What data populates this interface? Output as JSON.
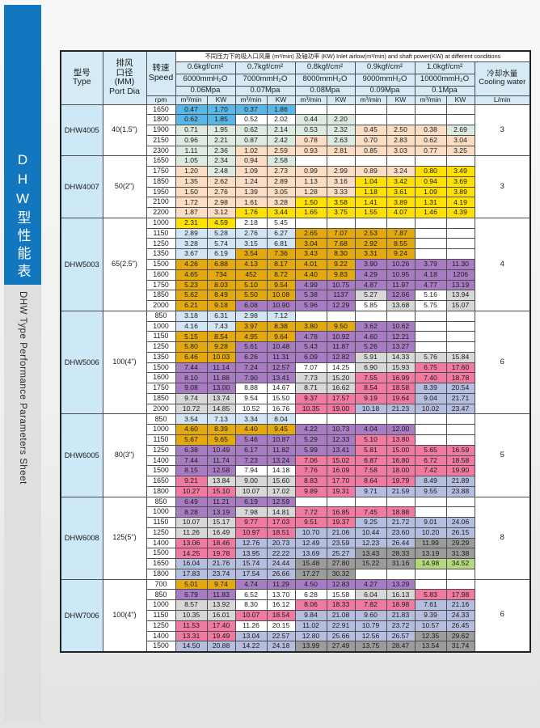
{
  "sidebar": {
    "title_cn": "DHW型性能表",
    "title_en": "DHW Type Performance Parameters Sheet"
  },
  "colors": {
    "sidebar_blue": "#1377C0",
    "sidebar_gray": "#DFDFDF",
    "header_blue": "#D6EAF5",
    "model_blue": "#CDE8F7"
  },
  "palette": {
    "B": "#58B7E6",
    "G": "#DCEADF",
    "P": "#FADDC3",
    "Y": "#FFE105",
    "L": "#D3E5F5",
    "O": "#E3A90F",
    "U": "#A87CC2",
    "S": "#D8D8D8",
    "K": "#F07AA2",
    "W": "#B5BEDF",
    "D": "#9C9C9C",
    "N": "#B5D77D",
    "-": "#FFFFFF"
  },
  "table": {
    "header": {
      "col_type": "型号\nType",
      "col_port": "排风\n口径\n(MM)\nPort Dia",
      "col_speed": "转速\nSpeed",
      "col_rpm": "rpm",
      "title": "不同压力下的吸入口风量 (m³/min) 及轴功率 (KW) Inlet airlow(m³/min) and shaft power(KW) at different conditions",
      "pressures": [
        "0.6kgf/cm²",
        "0.7kgf/cm²",
        "0.8kgf/cm²",
        "0.9kgf/cm²",
        "1.0kgf/cm²"
      ],
      "mmh2o": [
        "6000mmH₂O",
        "7000mmH₂O",
        "8000mmH₂O",
        "9000mmH₂O",
        "10000mmH₂O"
      ],
      "mpa": [
        "0.06Mpa",
        "0.07Mpa",
        "0.08Mpa",
        "0.09Mpa",
        "0.1Mpa"
      ],
      "unit_flow": "m³/min",
      "unit_power": "KW",
      "cooling": "冷却水量\nCooling water",
      "cooling_unit": "L/min"
    },
    "blocks": [
      {
        "model": "DHW4005",
        "port": "40(1.5\")",
        "cooling": "3",
        "rows": [
          {
            "rpm": "1650",
            "v": [
              "0.47",
              "1.70",
              "0.37",
              "1.86",
              "",
              "",
              "",
              "",
              "",
              ""
            ],
            "c": "BBBB------"
          },
          {
            "rpm": "1800",
            "v": [
              "0.62",
              "1.85",
              "0.52",
              "2.02",
              "0.44",
              "2.20",
              "",
              "",
              "",
              ""
            ],
            "c": "BB--GG----"
          },
          {
            "rpm": "1900",
            "v": [
              "0.71",
              "1.95",
              "0.62",
              "2.14",
              "0.53",
              "2.32",
              "0.45",
              "2.50",
              "0.38",
              "2.69"
            ],
            "c": "GGGGGGPPPG"
          },
          {
            "rpm": "2150",
            "v": [
              "0.96",
              "2.21",
              "0.87",
              "2.42",
              "0.78",
              "2.63",
              "0.70",
              "2.83",
              "0.62",
              "3.04"
            ],
            "c": "GGGGPGPPPP"
          },
          {
            "rpm": "2300",
            "v": [
              "1.11",
              "2.36",
              "1.02",
              "2.59",
              "0.93",
              "2.81",
              "0.85",
              "3.03",
              "0.77",
              "3.25"
            ],
            "c": "GGPPPPPPPP"
          }
        ]
      },
      {
        "model": "DHW4007",
        "port": "50(2\")",
        "cooling": "3",
        "rows": [
          {
            "rpm": "1650",
            "v": [
              "1.05",
              "2.34",
              "0.94",
              "2.58",
              "",
              "",
              "",
              "",
              "",
              ""
            ],
            "c": "GGPG------"
          },
          {
            "rpm": "1750",
            "v": [
              "1.20",
              "2.48",
              "1.09",
              "2.73",
              "0.99",
              "2.99",
              "0.89",
              "3.24",
              "0.80",
              "3.49"
            ],
            "c": "PGPPPPPPYY"
          },
          {
            "rpm": "1850",
            "v": [
              "1.35",
              "2.62",
              "1.24",
              "2.89",
              "1.13",
              "3.16",
              "1.04",
              "3.42",
              "0.94",
              "3.69"
            ],
            "c": "PPPPPPYYYY"
          },
          {
            "rpm": "1950",
            "v": [
              "1.50",
              "2.76",
              "1.39",
              "3.05",
              "1.28",
              "3.33",
              "1.18",
              "3.61",
              "1.09",
              "3.89"
            ],
            "c": "PPPPPPYYYY"
          },
          {
            "rpm": "2100",
            "v": [
              "1.72",
              "2.98",
              "1.61",
              "3.28",
              "1.50",
              "3.58",
              "1.41",
              "3.89",
              "1.31",
              "4.19"
            ],
            "c": "PPPPYYYYYY"
          },
          {
            "rpm": "2200",
            "v": [
              "1.87",
              "3.12",
              "1.76",
              "3.44",
              "1.65",
              "3.75",
              "1.55",
              "4.07",
              "1.46",
              "4.39"
            ],
            "c": "PPYYYYYYYY"
          }
        ]
      },
      {
        "model": "DHW5003",
        "port": "65(2.5\")",
        "cooling": "4",
        "rows": [
          {
            "rpm": "1000",
            "v": [
              "2.31",
              "4.59",
              "2.18",
              "5.45",
              "",
              "",
              "",
              "",
              "",
              ""
            ],
            "c": "YY--------"
          },
          {
            "rpm": "1150",
            "v": [
              "2.89",
              "5.28",
              "2.76",
              "6.27",
              "2.65",
              "7.07",
              "2.53",
              "7.87",
              "",
              ""
            ],
            "c": "LLLLOOOO--"
          },
          {
            "rpm": "1250",
            "v": [
              "3.28",
              "5.74",
              "3.15",
              "6.81",
              "3.04",
              "7.68",
              "2.92",
              "8.55",
              "",
              ""
            ],
            "c": "LLLLOOOO--"
          },
          {
            "rpm": "1350",
            "v": [
              "3.67",
              "6.19",
              "3.54",
              "7.36",
              "3.43",
              "8.30",
              "3.31",
              "9.24",
              "",
              ""
            ],
            "c": "LLOOOOOO--"
          },
          {
            "rpm": "1500",
            "v": [
              "4.26",
              "6.88",
              "4.13",
              "8.17",
              "4.01",
              "9.22",
              "3.90",
              "10.26",
              "3.79",
              "11.30"
            ],
            "c": "OOOOOOUUUU"
          },
          {
            "rpm": "1600",
            "v": [
              "4.65",
              "734",
              "452",
              "8.72",
              "4.40",
              "9.83",
              "4.29",
              "10.95",
              "4.18",
              "1206"
            ],
            "c": "OOOOOOUUUU"
          },
          {
            "rpm": "1750",
            "v": [
              "5.23",
              "8.03",
              "5.10",
              "9.54",
              "4.99",
              "10.75",
              "4.87",
              "11.97",
              "4.77",
              "13.19"
            ],
            "c": "OOOOUUUUUU"
          },
          {
            "rpm": "1850",
            "v": [
              "5.62",
              "8.49",
              "5.50",
              "10.08",
              "5.38",
              "1137",
              "5.27",
              "12.66",
              "5.16",
              "13.94"
            ],
            "c": "OOOOUUSU-S"
          },
          {
            "rpm": "2000",
            "v": [
              "6.21",
              "9.18",
              "6.08",
              "10.90",
              "5.96",
              "12.29",
              "5.85",
              "13.68",
              "5.75",
              "15.07"
            ],
            "c": "OOUUUU-S-S"
          }
        ]
      },
      {
        "model": "DHW5006",
        "port": "100(4\")",
        "cooling": "6",
        "rows": [
          {
            "rpm": "850",
            "v": [
              "3.18",
              "6.31",
              "2.98",
              "7.12",
              "",
              "",
              "",
              "",
              "",
              ""
            ],
            "c": "LLLL------"
          },
          {
            "rpm": "1000",
            "v": [
              "4.16",
              "7.43",
              "3.97",
              "8.38",
              "3.80",
              "9.50",
              "3.62",
              "10.62",
              "",
              ""
            ],
            "c": "LLOOOOUU--"
          },
          {
            "rpm": "1150",
            "v": [
              "5.15",
              "8.54",
              "4.95",
              "9.64",
              "4.78",
              "10.92",
              "4.60",
              "12.21",
              "",
              ""
            ],
            "c": "OOOOUUUU--"
          },
          {
            "rpm": "1250",
            "v": [
              "5.80",
              "9.28",
              "5.61",
              "10.48",
              "5.43",
              "11.87",
              "5.26",
              "13.27",
              "",
              ""
            ],
            "c": "OOUUUUUU--"
          },
          {
            "rpm": "1350",
            "v": [
              "6.46",
              "10.03",
              "6.26",
              "11.31",
              "6.09",
              "12.82",
              "5.91",
              "14.33",
              "5.76",
              "15.84"
            ],
            "c": "OOUUUUSSSS"
          },
          {
            "rpm": "1500",
            "v": [
              "7.44",
              "11.14",
              "7.24",
              "12.57",
              "7.07",
              "14.25",
              "6.90",
              "15.93",
              "6.75",
              "17.60"
            ],
            "c": "UUUU--SSKK"
          },
          {
            "rpm": "1600",
            "v": [
              "8.10",
              "11.88",
              "7.90",
              "13.41",
              "7.73",
              "15.20",
              "7.55",
              "16.99",
              "7.40",
              "18.78"
            ],
            "c": "UUUUSSKKKK"
          },
          {
            "rpm": "1750",
            "v": [
              "9.08",
              "13.00",
              "8.88",
              "14.67",
              "8.71",
              "16.62",
              "8.54",
              "18.58",
              "8.39",
              "20.54"
            ],
            "c": "UU--SSKKWW"
          },
          {
            "rpm": "1850",
            "v": [
              "9.74",
              "13.74",
              "9.54",
              "15.50",
              "9.37",
              "17.57",
              "9.19",
              "19.64",
              "9.04",
              "21.71"
            ],
            "c": "SS--KKKKWW"
          },
          {
            "rpm": "2000",
            "v": [
              "10.72",
              "14.85",
              "10.52",
              "16.76",
              "10.35",
              "19.00",
              "10.18",
              "21.23",
              "10.02",
              "23.47"
            ],
            "c": "SS--KKWWWW"
          }
        ]
      },
      {
        "model": "DHW6005",
        "port": "80(3\")",
        "cooling": "5",
        "rows": [
          {
            "rpm": "850",
            "v": [
              "3.54",
              "7.13",
              "3.34",
              "8.04",
              "",
              "",
              "",
              "",
              "",
              ""
            ],
            "c": "LLLL------"
          },
          {
            "rpm": "1000",
            "v": [
              "4.60",
              "8.39",
              "4.40",
              "9.45",
              "4.22",
              "10.73",
              "4.04",
              "12.00",
              "",
              ""
            ],
            "c": "OOOOUUUU--"
          },
          {
            "rpm": "1150",
            "v": [
              "5.67",
              "9.65",
              "5.46",
              "10.87",
              "5.29",
              "12.33",
              "5.10",
              "13.80",
              "",
              ""
            ],
            "c": "OOUUUUKK--"
          },
          {
            "rpm": "1250",
            "v": [
              "6.38",
              "10.49",
              "6.17",
              "11.82",
              "5.99",
              "13.41",
              "5.81",
              "15.00",
              "5.65",
              "16.59"
            ],
            "c": "UUUUUUKKKK"
          },
          {
            "rpm": "1400",
            "v": [
              "7.44",
              "11.74",
              "7.23",
              "13.24",
              "7.06",
              "15.02",
              "6.87",
              "16.80",
              "6.72",
              "18.58"
            ],
            "c": "UUUUKKKKKK"
          },
          {
            "rpm": "1500",
            "v": [
              "8.15",
              "12.58",
              "7.94",
              "14.18",
              "7.76",
              "16.09",
              "7.58",
              "18.00",
              "7.42",
              "19.90"
            ],
            "c": "UU--KKKKKK"
          },
          {
            "rpm": "1650",
            "v": [
              "9.21",
              "13.84",
              "9.00",
              "15.60",
              "8.83",
              "17.70",
              "8.64",
              "19.79",
              "8.49",
              "21.89"
            ],
            "c": "KSSSKKKKWW"
          },
          {
            "rpm": "1800",
            "v": [
              "10.27",
              "15.10",
              "10.07",
              "17.02",
              "9.89",
              "19.31",
              "9.71",
              "21.59",
              "9.55",
              "23.88"
            ],
            "c": "KKSSKKWWWW"
          }
        ]
      },
      {
        "model": "DHW6008",
        "port": "125(5\")",
        "cooling": "8",
        "rows": [
          {
            "rpm": "850",
            "v": [
              "6.49",
              "11.21",
              "6.19",
              "12.59",
              "",
              "",
              "",
              "",
              "",
              ""
            ],
            "c": "UUUU------"
          },
          {
            "rpm": "1000",
            "v": [
              "8.28",
              "13.19",
              "7.98",
              "14.81",
              "7.72",
              "16.85",
              "7.45",
              "18.88",
              "",
              ""
            ],
            "c": "UUSSKKKK--"
          },
          {
            "rpm": "1150",
            "v": [
              "10.07",
              "15.17",
              "9.77",
              "17.03",
              "9.51",
              "19.37",
              "9.25",
              "21.72",
              "9.01",
              "24.06"
            ],
            "c": "SSKKKKWWWW"
          },
          {
            "rpm": "1250",
            "v": [
              "11.26",
              "16.49",
              "10.97",
              "18.51",
              "10.70",
              "21.06",
              "10.44",
              "23.60",
              "10.20",
              "26.15"
            ],
            "c": "SSKKWWWWWW"
          },
          {
            "rpm": "1400",
            "v": [
              "13.06",
              "18.46",
              "12.76",
              "20.73",
              "12.49",
              "23.59",
              "12.23",
              "26.44",
              "11.99",
              "29.29"
            ],
            "c": "KKWWWWWWDD"
          },
          {
            "rpm": "1500",
            "v": [
              "14.25",
              "19.78",
              "13.95",
              "22.22",
              "13.69",
              "25.27",
              "13.43",
              "28.33",
              "13.19",
              "31.38"
            ],
            "c": "KKWWWWDDDD"
          },
          {
            "rpm": "1650",
            "v": [
              "16.04",
              "21.76",
              "15.74",
              "24.44",
              "15.48",
              "27.80",
              "15.22",
              "31.16",
              "14.98",
              "34.52"
            ],
            "c": "WWWWDDDDNN"
          },
          {
            "rpm": "1800",
            "v": [
              "17.83",
              "23.74",
              "17.54",
              "26.66",
              "17.27",
              "30.32",
              "",
              "",
              "",
              ""
            ],
            "c": "WWWWDD----"
          }
        ]
      },
      {
        "model": "DHW7006",
        "port": "100(4\")",
        "cooling": "6",
        "rows": [
          {
            "rpm": "700",
            "v": [
              "5.01",
              "9.74",
              "4.74",
              "11.29",
              "4.50",
              "12.83",
              "4.27",
              "13.29",
              "",
              ""
            ],
            "c": "OOUUUUUU--"
          },
          {
            "rpm": "850",
            "v": [
              "6.79",
              "11.83",
              "6.52",
              "13.70",
              "6.28",
              "15.58",
              "6.04",
              "16.13",
              "5.83",
              "17.98"
            ],
            "c": "UU----SSKK"
          },
          {
            "rpm": "1000",
            "v": [
              "8.57",
              "13.92",
              "8.30",
              "16.12",
              "8.06",
              "18.33",
              "7.82",
              "18.98",
              "7.61",
              "21.16"
            ],
            "c": "SS--KKKKWW"
          },
          {
            "rpm": "1150",
            "v": [
              "10.35",
              "16.01",
              "10.07",
              "18.54",
              "9.84",
              "21.08",
              "9.60",
              "21.83",
              "9.39",
              "24.33"
            ],
            "c": "SSKKWWWWWW"
          },
          {
            "rpm": "1250",
            "v": [
              "11.53",
              "17.40",
              "11.26",
              "20.15",
              "11.02",
              "22.91",
              "10.79",
              "23.72",
              "10.57",
              "26.45"
            ],
            "c": "KK--WWWWWW"
          },
          {
            "rpm": "1400",
            "v": [
              "13.31",
              "19.49",
              "13.04",
              "22.57",
              "12.80",
              "25.66",
              "12.56",
              "26.57",
              "12.35",
              "29.62"
            ],
            "c": "KKWWWWWWDD"
          },
          {
            "rpm": "1500",
            "v": [
              "14.50",
              "20.88",
              "14.22",
              "24.18",
              "13.99",
              "27.49",
              "13.75",
              "28.47",
              "13.54",
              "31.74"
            ],
            "c": "WWWWDDDDDD"
          }
        ]
      }
    ]
  }
}
